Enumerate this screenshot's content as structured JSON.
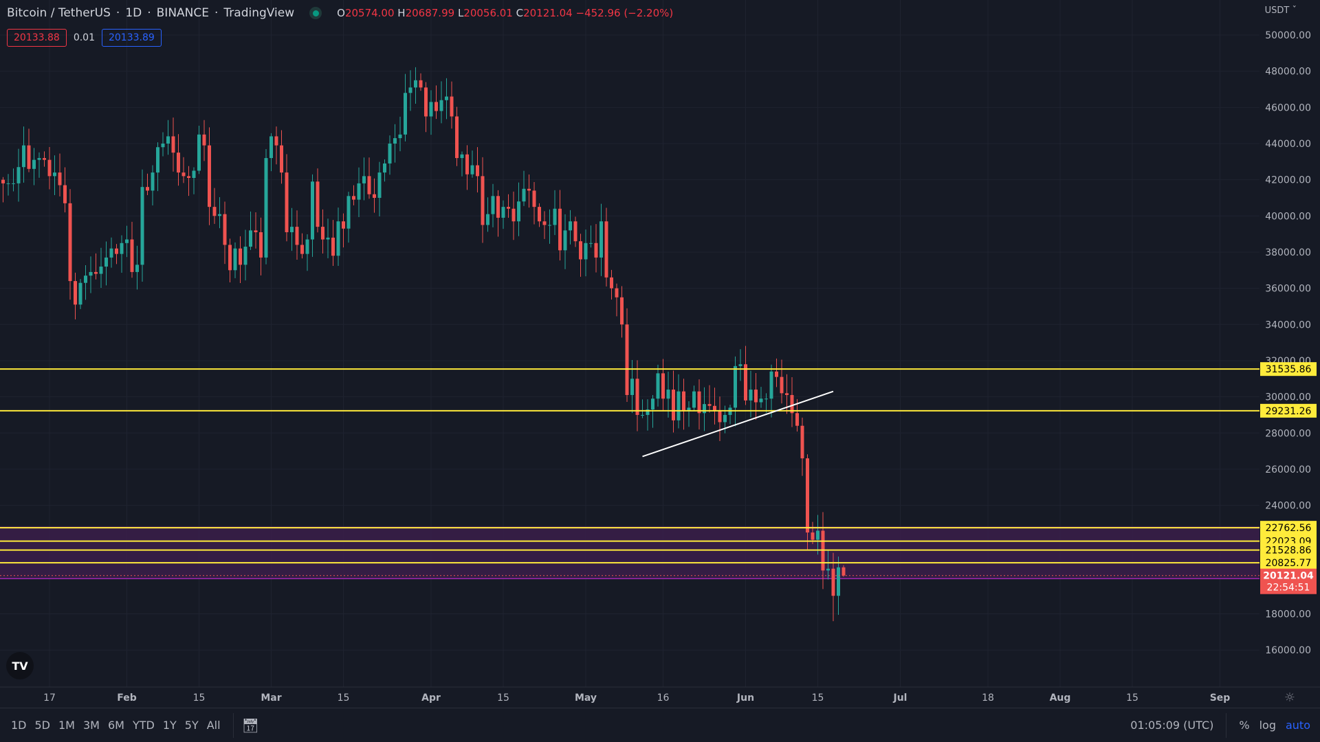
{
  "header": {
    "symbol": "Bitcoin / TetherUS",
    "interval": "1D",
    "exchange": "BINANCE",
    "source": "TradingView",
    "ohlc": {
      "o_label": "O",
      "o": "20574.00",
      "h_label": "H",
      "h": "20687.99",
      "l_label": "L",
      "l": "20056.01",
      "c_label": "C",
      "c": "20121.04",
      "change": "−452.96 (−2.20%)"
    },
    "sell_price": "20133.88",
    "spread": "0.01",
    "buy_price": "20133.89",
    "currency": "USDT"
  },
  "colors": {
    "up": "#26a69a",
    "down": "#ef5350",
    "level": "#ffeb3b",
    "zone": "#3a1f4a",
    "zone_border": "#9c27b0",
    "bg": "#161a25"
  },
  "chart_data": {
    "type": "candlestick",
    "start_date": "2022-01-08",
    "closes_k": [
      41.8,
      41.8,
      41.8,
      42.7,
      43.9,
      42.6,
      43.1,
      43.2,
      43.1,
      42.2,
      42.4,
      41.7,
      40.7,
      36.4,
      35.1,
      36.3,
      36.7,
      36.9,
      36.8,
      37.2,
      37.7,
      38.2,
      37.9,
      38.5,
      38.7,
      36.9,
      37.3,
      41.6,
      41.4,
      42.4,
      43.8,
      44.0,
      44.4,
      43.5,
      42.4,
      42.2,
      42.1,
      42.5,
      44.5,
      43.9,
      40.5,
      40.0,
      40.1,
      38.4,
      37.0,
      38.2,
      37.3,
      38.3,
      39.2,
      39.1,
      37.7,
      43.2,
      44.4,
      43.9,
      42.4,
      39.1,
      39.4,
      38.4,
      37.9,
      38.7,
      41.9,
      39.4,
      38.7,
      38.8,
      37.8,
      39.7,
      39.3,
      41.1,
      40.9,
      41.8,
      42.2,
      41.2,
      41.0,
      42.4,
      42.9,
      44.0,
      44.3,
      44.5,
      46.8,
      47.1,
      47.5,
      47.1,
      45.5,
      46.3,
      45.8,
      46.4,
      46.6,
      45.5,
      43.2,
      43.4,
      42.3,
      42.8,
      42.2,
      39.5,
      40.1,
      41.1,
      39.9,
      40.5,
      40.4,
      39.7,
      40.8,
      41.5,
      41.4,
      40.5,
      39.7,
      39.5,
      39.5,
      40.4,
      38.1,
      39.2,
      39.7,
      38.6,
      37.6,
      38.5,
      38.5,
      37.7,
      39.7,
      36.6,
      36.0,
      35.5,
      34.0,
      30.1,
      31.0,
      29.0,
      29.0,
      29.3,
      29.9,
      31.3,
      29.9,
      30.4,
      28.7,
      30.3,
      29.2,
      29.4,
      30.3,
      29.1,
      29.6,
      29.5,
      29.2,
      28.6,
      29.0,
      29.4,
      31.7,
      31.8,
      29.8,
      30.4,
      29.7,
      29.9,
      29.9,
      31.4,
      31.1,
      30.2,
      30.1,
      29.1,
      28.4,
      26.6,
      22.5,
      22.1,
      22.6,
      20.4,
      20.5,
      19.0,
      20.574,
      20.121
    ],
    "last_candle": {
      "open": 20574.0,
      "high": 20687.99,
      "low": 20056.01,
      "close": 20121.04
    },
    "y_ticks": [
      "50000.00",
      "48000.00",
      "46000.00",
      "44000.00",
      "42000.00",
      "40000.00",
      "38000.00",
      "36000.00",
      "34000.00",
      "32000.00",
      "30000.00",
      "28000.00",
      "26000.00",
      "24000.00",
      "18000.00",
      "16000.00"
    ],
    "x_ticks": [
      {
        "label": "17",
        "date": "2022-01-17",
        "bold": false
      },
      {
        "label": "Feb",
        "date": "2022-02-01",
        "bold": true
      },
      {
        "label": "15",
        "date": "2022-02-15",
        "bold": false
      },
      {
        "label": "Mar",
        "date": "2022-03-01",
        "bold": true
      },
      {
        "label": "15",
        "date": "2022-03-15",
        "bold": false
      },
      {
        "label": "Apr",
        "date": "2022-04-01",
        "bold": true
      },
      {
        "label": "15",
        "date": "2022-04-15",
        "bold": false
      },
      {
        "label": "May",
        "date": "2022-05-01",
        "bold": true
      },
      {
        "label": "16",
        "date": "2022-05-16",
        "bold": false
      },
      {
        "label": "Jun",
        "date": "2022-06-01",
        "bold": true
      },
      {
        "label": "15",
        "date": "2022-06-15",
        "bold": false
      },
      {
        "label": "Jul",
        "date": "2022-07-01",
        "bold": true
      },
      {
        "label": "18",
        "date": "2022-07-18",
        "bold": false
      },
      {
        "label": "Aug",
        "date": "2022-08-01",
        "bold": true
      },
      {
        "label": "15",
        "date": "2022-08-15",
        "bold": false
      },
      {
        "label": "Sep",
        "date": "2022-09-01",
        "bold": true
      }
    ],
    "ylim": [
      15000,
      51000
    ],
    "levels": [
      {
        "price": 31535.86,
        "label": "31535.86"
      },
      {
        "price": 29231.26,
        "label": "29231.26"
      },
      {
        "price": 22762.56,
        "label": "22762.56"
      },
      {
        "price": 22023.09,
        "label": "22023.09"
      },
      {
        "price": 21528.86,
        "label": "21528.86"
      },
      {
        "price": 20825.77,
        "label": "20825.77"
      }
    ],
    "zone": {
      "top": 22850,
      "bottom": 19950
    },
    "current_price": {
      "price": 20121.04,
      "label": "20121.04",
      "countdown": "22:54:51"
    },
    "trendline": {
      "from": {
        "date": "2022-05-12",
        "price": 26700
      },
      "to": {
        "date": "2022-06-18",
        "price": 30300
      }
    }
  },
  "bottom_bar": {
    "ranges": [
      "1D",
      "5D",
      "1M",
      "3M",
      "6M",
      "YTD",
      "1Y",
      "5Y",
      "All"
    ],
    "clock": "01:05:09 (UTC)",
    "percent": "%",
    "log": "log",
    "auto": "auto"
  }
}
